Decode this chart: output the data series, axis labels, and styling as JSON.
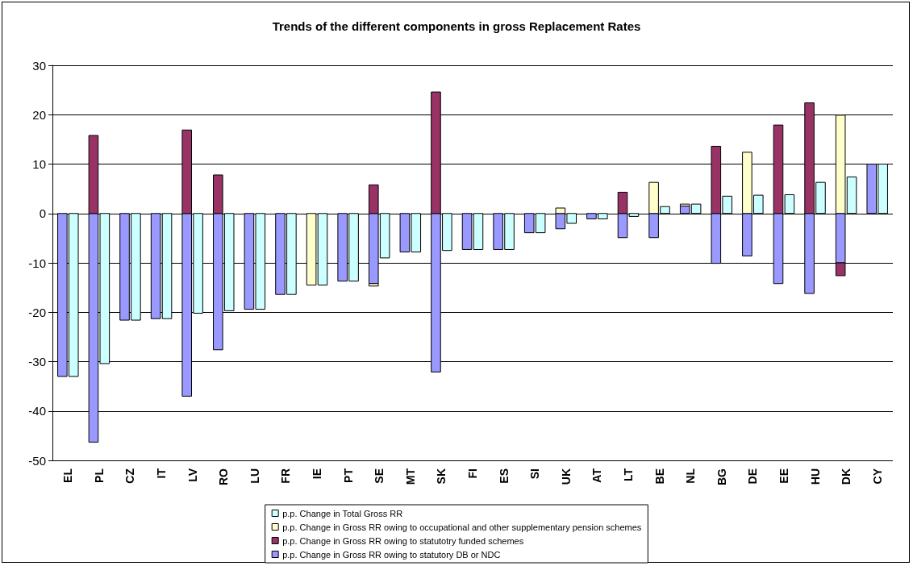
{
  "chart_data": {
    "type": "bar",
    "title": "Trends of the different components in gross Replacement Rates",
    "categories": [
      "EL",
      "PL",
      "CZ",
      "IT",
      "LV",
      "RO",
      "LU",
      "FR",
      "IE",
      "PT",
      "SE",
      "MT",
      "SK",
      "FI",
      "ES",
      "SI",
      "UK",
      "AT",
      "LT",
      "BE",
      "NL",
      "BG",
      "DE",
      "EE",
      "HU",
      "DK",
      "CY"
    ],
    "series": [
      {
        "name": "p.p. Change in Gross RR owing to statutory DB or NDC",
        "color": "#9999ff",
        "values": [
          -33,
          -46.3,
          -21.6,
          -21.3,
          -37,
          -27.6,
          -19.4,
          -16.4,
          null,
          -13.7,
          -14.2,
          -7.8,
          -32.1,
          -7.3,
          -7.3,
          -3.9,
          -3.1,
          -1.1,
          -4.9,
          -4.9,
          1.5,
          -10.1,
          -8.6,
          -14.2,
          -16.2,
          -10,
          10
        ],
        "base": [
          0,
          0,
          0,
          0,
          0,
          0,
          0,
          0,
          null,
          0,
          0,
          0,
          0,
          0,
          0,
          0,
          0,
          0,
          0,
          0,
          0,
          0,
          0,
          0,
          0,
          0,
          0
        ]
      },
      {
        "name": "p.p. Change in Gross RR owing to statutotry funded schemes",
        "color": "#993366",
        "values": [
          null,
          15.8,
          null,
          null,
          16.9,
          7.8,
          null,
          null,
          null,
          null,
          5.8,
          null,
          24.6,
          null,
          null,
          null,
          null,
          null,
          4.3,
          null,
          null,
          13.6,
          null,
          17.9,
          22.4,
          -2.6,
          null
        ],
        "base": [
          null,
          0,
          null,
          null,
          0,
          0,
          null,
          null,
          null,
          null,
          0,
          null,
          0,
          null,
          null,
          null,
          null,
          null,
          0,
          null,
          null,
          0,
          null,
          0,
          0,
          -10,
          null
        ]
      },
      {
        "name": "p.p. Change in Gross RR owing to occupational and other supplementary pension schemes",
        "color": "#ffffcc",
        "values": [
          null,
          null,
          null,
          null,
          null,
          null,
          null,
          null,
          -14.5,
          null,
          -0.5,
          null,
          null,
          null,
          null,
          null,
          1.1,
          null,
          null,
          6.3,
          0.4,
          null,
          12.4,
          null,
          null,
          19.9,
          null
        ],
        "base": [
          null,
          null,
          null,
          null,
          null,
          null,
          null,
          null,
          0,
          null,
          -14.2,
          null,
          null,
          null,
          null,
          null,
          0,
          null,
          null,
          0,
          1.5,
          null,
          0,
          null,
          null,
          0,
          null
        ]
      },
      {
        "name": "p.p. Change in Total Gross RR",
        "color": "#ccffff",
        "values": [
          -33,
          -30.4,
          -21.6,
          -21.3,
          -20.2,
          -19.7,
          -19.4,
          -16.4,
          -14.5,
          -13.7,
          -9,
          -7.8,
          -7.5,
          -7.3,
          -7.3,
          -3.9,
          -2,
          -1.1,
          -0.6,
          1.4,
          1.9,
          3.5,
          3.7,
          3.8,
          6.3,
          7.4,
          10
        ]
      }
    ],
    "ylim": [
      -50,
      30
    ],
    "yticks": [
      -50,
      -40,
      -30,
      -20,
      -10,
      0,
      10,
      20,
      30
    ],
    "grid": "y",
    "legend": "bottom"
  }
}
